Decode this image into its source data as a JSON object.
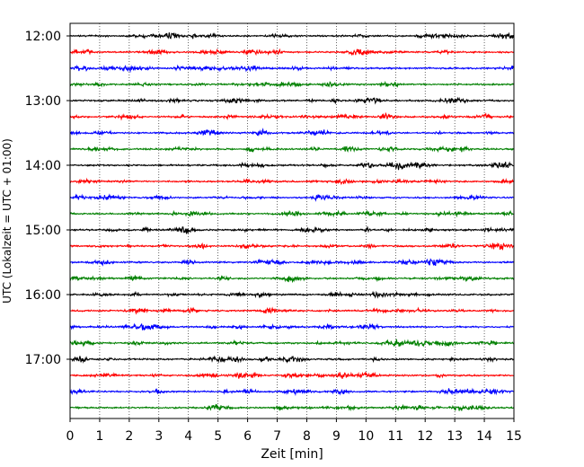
{
  "chart_data": {
    "type": "line",
    "title": "",
    "xlabel": "Zeit  [min]",
    "ylabel": "UTC (Lokalzeit = UTC + 01:00)",
    "xlim": [
      0,
      15
    ],
    "x_ticks": [
      "0",
      "1",
      "2",
      "3",
      "4",
      "5",
      "6",
      "7",
      "8",
      "9",
      "10",
      "11",
      "12",
      "13",
      "14",
      "15"
    ],
    "y_tick_labels": [
      "12:00",
      "13:00",
      "14:00",
      "15:00",
      "16:00",
      "17:00"
    ],
    "grid": "vertical dotted",
    "legend": "none",
    "trace_interval": "00:15",
    "trace_start": "12:00",
    "trace_end": "17:45",
    "trace_colors": [
      "#000000",
      "#ff0000",
      "#0000ff",
      "#008000"
    ]
  }
}
